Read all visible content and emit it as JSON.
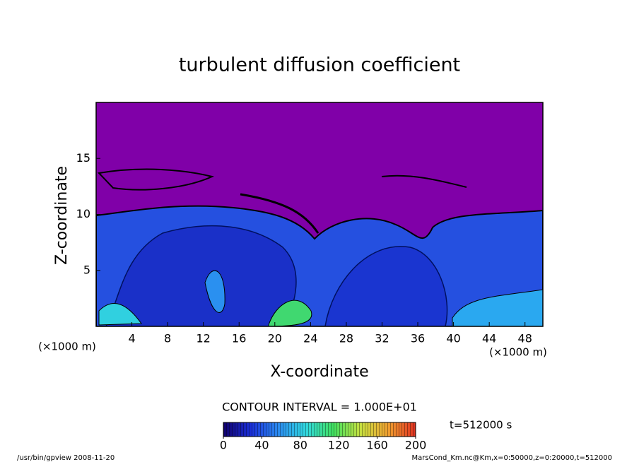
{
  "chart_data": {
    "type": "contour",
    "title": "turbulent diffusion coefficient",
    "x_label": "X-coordinate",
    "y_label": "Z-coordinate",
    "x_unit_label": "(×1000 m)",
    "y_unit_label": "(×1000 m)",
    "xlim": [
      0,
      50
    ],
    "xticks": [
      4,
      8,
      12,
      16,
      20,
      24,
      28,
      32,
      36,
      40,
      44,
      48
    ],
    "ylim": [
      0,
      20
    ],
    "yticks": [
      5,
      10,
      15
    ],
    "contour_interval_label": "CONTOUR INTERVAL = 1.000E+01",
    "time_label": "t=512000 s",
    "colorbar": {
      "lim": [
        0,
        200
      ],
      "ticks": [
        0,
        40,
        80,
        120,
        160,
        200
      ],
      "colors": [
        "#10006a",
        "#1a2fd8",
        "#2a8af0",
        "#30d8e0",
        "#40e060",
        "#c8e040",
        "#f0a030",
        "#e03020"
      ]
    },
    "footer_left": "/usr/bin/gpview  2008-11-20",
    "footer_right": "MarsCond_Km.nc@Km,x=0:50000,z=0:20000,t=512000"
  }
}
